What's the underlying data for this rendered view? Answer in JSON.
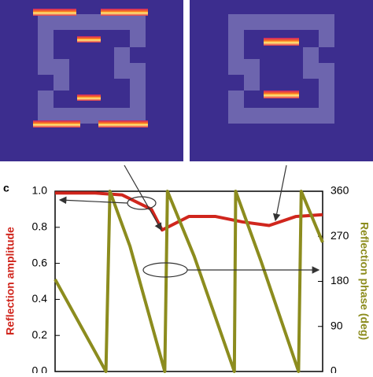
{
  "chart_data": {
    "type": "line",
    "panel_label": "c",
    "ylabel": "Reflection amplitude",
    "y2label": "Reflection phase (deg)",
    "xlim": [
      0,
      1
    ],
    "ylim": [
      0,
      1
    ],
    "y2lim": [
      0,
      360
    ],
    "yticks": [
      {
        "value": 0,
        "label": "0.0"
      },
      0.2,
      0.4,
      0.6,
      0.8,
      {
        "value": 1,
        "label": "1.0"
      }
    ],
    "y2ticks": [
      0,
      90,
      180,
      270,
      360
    ],
    "series": [
      {
        "name": "Reflection amplitude",
        "color": "#d0261d",
        "axis": "y",
        "x": [
          0,
          0.15,
          0.25,
          0.36,
          0.4,
          0.5,
          0.6,
          0.7,
          0.8,
          0.9,
          1.0
        ],
        "values": [
          0.99,
          0.99,
          0.98,
          0.9,
          0.785,
          0.86,
          0.86,
          0.83,
          0.81,
          0.86,
          0.87
        ]
      },
      {
        "name": "Reflection phase",
        "color": "#8c8c1e",
        "axis": "y2",
        "x": [
          0,
          0.19,
          0.205,
          0.28,
          0.41,
          0.42,
          0.52,
          0.67,
          0.675,
          0.77,
          0.91,
          0.92,
          1.0
        ],
        "values": [
          184,
          0,
          360,
          250,
          0,
          360,
          230,
          0,
          360,
          220,
          0,
          360,
          258
        ]
      }
    ]
  }
}
